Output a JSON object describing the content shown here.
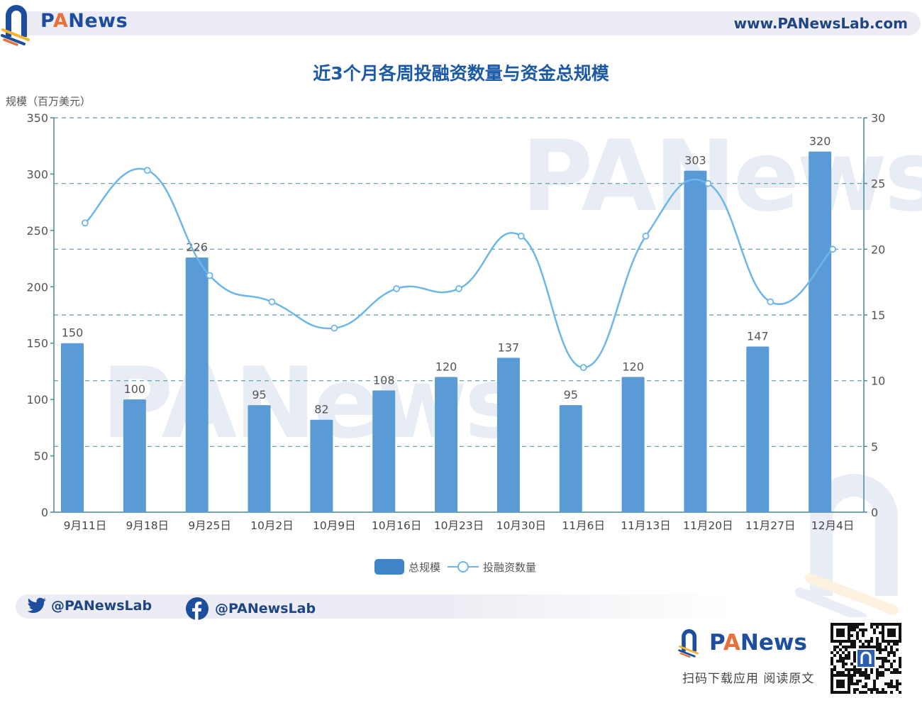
{
  "header": {
    "brand": {
      "p": "P",
      "a": "A",
      "rest": "News"
    },
    "site_url": "www.PANewsLab.com"
  },
  "chart_title": "近3个月各周投融资数量与资金总规模",
  "colors": {
    "bar": "#5b9bd5",
    "line": "#6cb6ea",
    "axis": "#4a8a94",
    "grid": "#5a9ca3",
    "title": "#1c5aa5",
    "brand_blue": "#1d4e9e",
    "brand_orange": "#e8703a"
  },
  "chart_data": {
    "type": "bar+line",
    "title": "近3个月各周投融资数量与资金总规模",
    "xlabel": "",
    "ylabel": "规模（百万美元）",
    "y2label": "",
    "categories": [
      "9月11日",
      "9月18日",
      "9月25日",
      "10月2日",
      "10月9日",
      "10月16日",
      "10月23日",
      "10月30日",
      "11月6日",
      "11月13日",
      "11月20日",
      "11月27日",
      "12月4日"
    ],
    "series": [
      {
        "name": "总规模",
        "type": "bar",
        "axis": "left",
        "values": [
          150,
          100,
          226,
          95,
          82,
          108,
          120,
          137,
          95,
          120,
          303,
          147,
          320
        ]
      },
      {
        "name": "投融资数量",
        "type": "line",
        "smooth": true,
        "axis": "right",
        "values": [
          22,
          26,
          18,
          16,
          14,
          17,
          17,
          21,
          11,
          21,
          25,
          16,
          20
        ]
      }
    ],
    "ylim": [
      0,
      350
    ],
    "y_ticks": [
      "0",
      "50",
      "100",
      "150",
      "200",
      "250",
      "300",
      "350"
    ],
    "y2lim": [
      0,
      30
    ],
    "y2_ticks": [
      "0",
      "5",
      "10",
      "15",
      "20",
      "25",
      "30"
    ],
    "grid": "dashed horizontal (right-axis ticks)",
    "legend_position": "bottom-center",
    "data_labels": "bar values shown above bars"
  },
  "legend": [
    {
      "label": "总规模"
    },
    {
      "label": "投融资数量"
    }
  ],
  "social": {
    "twitter": "@PANewsLab",
    "facebook": "@PANewsLab"
  },
  "footer": {
    "brand": {
      "p": "P",
      "a": "A",
      "rest": "News"
    },
    "subtitle": "扫码下载应用  阅读原文"
  }
}
